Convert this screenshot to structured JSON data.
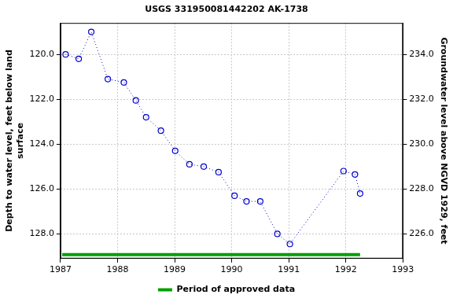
{
  "chart_data": {
    "type": "line",
    "title": "USGS 331950081442202 AK-1738",
    "y_label": [
      "Depth to water level, feet below land",
      "surface"
    ],
    "y2_label": "Groundwater level above NGVD 1929, feet",
    "x": [
      1987.09,
      1987.32,
      1987.54,
      1987.83,
      1988.11,
      1988.32,
      1988.5,
      1988.76,
      1989.01,
      1989.26,
      1989.51,
      1989.77,
      1990.05,
      1990.26,
      1990.5,
      1990.8,
      1991.02,
      1991.96,
      1992.16,
      1992.25
    ],
    "values": [
      120.0,
      120.2,
      119.0,
      121.1,
      121.25,
      122.05,
      122.8,
      123.4,
      124.3,
      124.9,
      125.0,
      125.25,
      126.3,
      126.55,
      126.55,
      128.0,
      128.45,
      125.2,
      125.35,
      126.2
    ],
    "color": "#0000cc",
    "marker": "circle",
    "line_style": "dotted",
    "xlim": [
      1987,
      1993
    ],
    "xticks": [
      1987,
      1988,
      1989,
      1990,
      1991,
      1992,
      1993
    ],
    "ylim": [
      118.6,
      129.1
    ],
    "yticks": [
      {
        "value": 120,
        "label": "120.0"
      },
      {
        "value": 122,
        "label": "122.0"
      },
      {
        "value": 124,
        "label": "124.0"
      },
      {
        "value": 126,
        "label": "126.0"
      },
      {
        "value": 128,
        "label": "128.0"
      }
    ],
    "y2lim": [
      235.4,
      224.9
    ],
    "y2ticks": [
      {
        "value": 234,
        "label": "234.0"
      },
      {
        "value": 232,
        "label": "232.0"
      },
      {
        "value": 230,
        "label": "230.0"
      },
      {
        "value": 228,
        "label": "228.0"
      },
      {
        "value": 226,
        "label": "226.0"
      }
    ],
    "approved_period": {
      "name": "Period of approved data",
      "color": "#00a000",
      "x": [
        1987.03,
        1992.25
      ]
    },
    "grid": true,
    "legend": "bottom"
  }
}
